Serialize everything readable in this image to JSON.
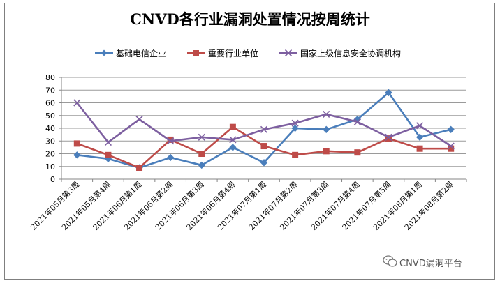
{
  "chart_data": {
    "type": "line",
    "title": "CNVD各行业漏洞处置情况按周统计",
    "xlabel": "",
    "ylabel": "",
    "ylim": [
      0,
      80
    ],
    "yticks": [
      0,
      10,
      20,
      30,
      40,
      50,
      60,
      70,
      80
    ],
    "grid": true,
    "legend_position": "top",
    "categories": [
      "2021年05月第3周",
      "2021年05月第4周",
      "2021年06月第1周",
      "2021年06月第2周",
      "2021年06月第3周",
      "2021年06月第4周",
      "2021年07月第1周",
      "2021年07月第2周",
      "2021年07月第3周",
      "2021年07月第4周",
      "2021年07月第5周",
      "2021年08月第1周",
      "2021年08月第2周"
    ],
    "series": [
      {
        "name": "基础电信企业",
        "color": "#4a7ebb",
        "marker": "diamond",
        "values": [
          19,
          16,
          9,
          17,
          11,
          25,
          13,
          40,
          39,
          47,
          68,
          33,
          39
        ]
      },
      {
        "name": "重要行业单位",
        "color": "#be4b48",
        "marker": "square",
        "values": [
          28,
          19,
          9,
          31,
          20,
          41,
          26,
          19,
          22,
          21,
          32,
          24,
          24
        ]
      },
      {
        "name": "国家上级信息安全协调机构",
        "color": "#7d5fa0",
        "marker": "x",
        "values": [
          60,
          29,
          47,
          30,
          33,
          31,
          39,
          44,
          51,
          45,
          33,
          42,
          26
        ]
      }
    ]
  },
  "watermark": {
    "text": "CNVD漏洞平台",
    "icon": "wechat-icon"
  }
}
